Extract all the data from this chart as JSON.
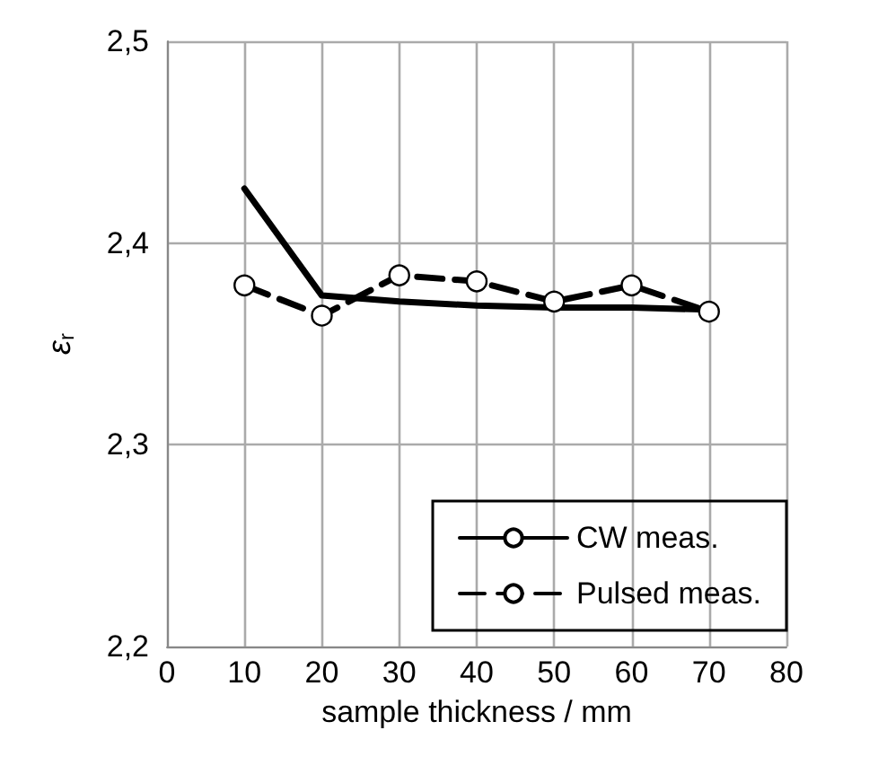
{
  "chart_data": {
    "type": "line",
    "xlabel": "sample thickness / mm",
    "ylabel": "ε$_{r}$",
    "x": [
      10,
      20,
      30,
      40,
      50,
      60,
      70
    ],
    "series": [
      {
        "name": "CW meas.",
        "color": "#000000",
        "marker": "none",
        "line_style": "solid",
        "values": [
          2.427,
          2.374,
          2.371,
          2.369,
          2.368,
          2.368,
          2.367
        ]
      },
      {
        "name": "Pulsed meas.",
        "color": "#000000",
        "marker": "circle",
        "line_style": "dashed",
        "values": [
          2.379,
          2.364,
          2.384,
          2.381,
          2.371,
          2.379,
          2.366
        ]
      }
    ],
    "xlim": [
      0,
      80
    ],
    "xticks": [
      0,
      10,
      20,
      30,
      40,
      50,
      60,
      70,
      80
    ],
    "ylim": [
      2.2,
      2.5
    ],
    "yticks": [
      {
        "value": 2.2,
        "label": "2,2"
      },
      {
        "value": 2.3,
        "label": "2,3"
      },
      {
        "value": 2.4,
        "label": "2,4"
      },
      {
        "value": 2.5,
        "label": "2,5"
      }
    ],
    "grid": true,
    "legend": "bottom right"
  }
}
